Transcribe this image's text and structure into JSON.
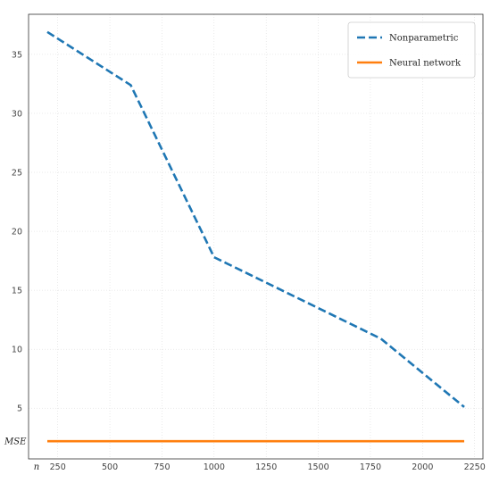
{
  "chart_data": {
    "type": "line",
    "title": "",
    "xlabel": "n",
    "ylabel": "MSE",
    "x": [
      200,
      600,
      1000,
      1800,
      2200
    ],
    "series": [
      {
        "name": "Nonparametric",
        "values": [
          36.9,
          32.4,
          17.8,
          10.9,
          5.1
        ],
        "color": "#1f77b4",
        "style": "dashed"
      },
      {
        "name": "Neural network",
        "values": [
          2.2,
          2.2,
          2.2,
          2.2,
          2.2
        ],
        "color": "#ff7f0e",
        "style": "solid"
      }
    ],
    "xlim": [
      110,
      2290
    ],
    "ylim": [
      0.7,
      38.4
    ],
    "xticks": [
      250,
      500,
      750,
      1000,
      1250,
      1500,
      1750,
      2000,
      2250
    ],
    "yticks": [
      5,
      10,
      15,
      20,
      25,
      30,
      35
    ],
    "grid": true,
    "legend_position": "top-right"
  }
}
